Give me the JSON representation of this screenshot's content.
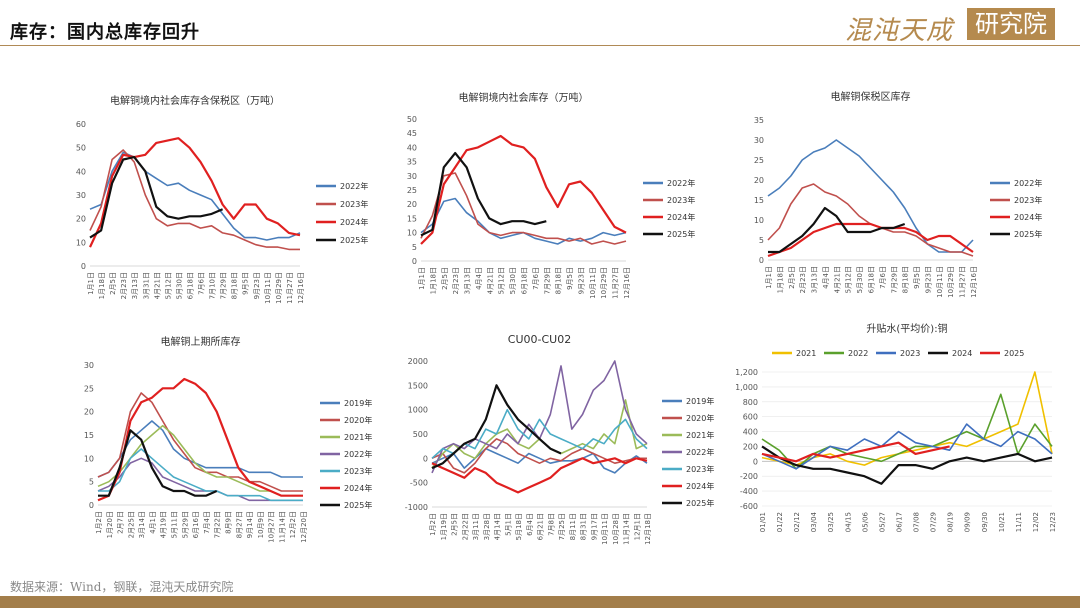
{
  "header": {
    "title": "库存：国内总库存回升",
    "logo_text": "混沌天成",
    "logo_box": "研究院"
  },
  "footer": {
    "source": "数据来源：Wind，钢联，混沌天成研究院"
  },
  "colors": {
    "accent": "#b58a4e"
  },
  "chart_data": [
    {
      "id": "c1",
      "type": "line",
      "title": "电解铜境内社会库存含保税区（万吨）",
      "ylim": [
        0,
        60
      ],
      "yticks": [
        0,
        10,
        20,
        30,
        40,
        50,
        60
      ],
      "categories": [
        "1月1日",
        "1月18日",
        "2月5日",
        "2月23日",
        "3月13日",
        "3月31日",
        "4月21日",
        "5月12日",
        "5月30日",
        "6月18日",
        "7月6日",
        "7月10日",
        "7月29日",
        "8月18日",
        "9月5日",
        "9月23日",
        "10月11日",
        "10月29日",
        "11月27日",
        "12月16日"
      ],
      "legend_position": "right",
      "series": [
        {
          "name": "2022年",
          "color": "#4a7ebb",
          "values": [
            24,
            26,
            40,
            48,
            46,
            40,
            37,
            34,
            35,
            32,
            30,
            28,
            22,
            16,
            12,
            12,
            11,
            12,
            12,
            14
          ]
        },
        {
          "name": "2023年",
          "color": "#c0504d",
          "values": [
            15,
            25,
            45,
            49,
            44,
            30,
            20,
            17,
            18,
            18,
            16,
            17,
            14,
            13,
            11,
            9,
            8,
            8,
            7,
            7
          ]
        },
        {
          "name": "2024年",
          "color": "#e02020",
          "values": [
            8,
            18,
            38,
            47,
            46,
            47,
            52,
            53,
            54,
            50,
            44,
            36,
            26,
            20,
            26,
            26,
            20,
            18,
            14,
            13
          ]
        },
        {
          "name": "2025年",
          "color": "#111111",
          "values": [
            12,
            15,
            35,
            45,
            46,
            40,
            25,
            21,
            20,
            21,
            21,
            22,
            24,
            null,
            null,
            null,
            null,
            null,
            null,
            null
          ]
        }
      ]
    },
    {
      "id": "c2",
      "type": "line",
      "title": "电解铜境内社会库存（万吨）",
      "ylim": [
        0,
        50
      ],
      "yticks": [
        0,
        5,
        10,
        15,
        20,
        25,
        30,
        35,
        40,
        45,
        50
      ],
      "categories": [
        "1月1日",
        "1月18日",
        "2月5日",
        "2月23日",
        "3月13日",
        "4月4日",
        "4月21日",
        "5月12日",
        "5月30日",
        "6月18日",
        "7月6日",
        "7月29日",
        "8月18日",
        "9月5日",
        "9月23日",
        "10月11日",
        "10月29日",
        "11月27日",
        "12月16日"
      ],
      "legend_position": "right",
      "series": [
        {
          "name": "2022年",
          "color": "#4a7ebb",
          "values": [
            10,
            13,
            21,
            22,
            17,
            14,
            10,
            8,
            9,
            10,
            8,
            7,
            6,
            8,
            7,
            8,
            10,
            9,
            10
          ]
        },
        {
          "name": "2023年",
          "color": "#c0504d",
          "values": [
            8,
            16,
            30,
            31,
            23,
            13,
            10,
            9,
            10,
            10,
            9,
            8,
            8,
            7,
            8,
            6,
            7,
            6,
            7
          ]
        },
        {
          "name": "2024年",
          "color": "#e02020",
          "values": [
            6,
            10,
            27,
            33,
            39,
            40,
            42,
            44,
            41,
            40,
            36,
            26,
            19,
            27,
            28,
            24,
            18,
            12,
            10
          ]
        },
        {
          "name": "2025年",
          "color": "#111111",
          "values": [
            9,
            11,
            33,
            38,
            33,
            22,
            15,
            13,
            14,
            14,
            13,
            14,
            null,
            null,
            null,
            null,
            null,
            null,
            null
          ]
        }
      ]
    },
    {
      "id": "c3",
      "type": "line",
      "title": "电解铜保税区库存",
      "ylim": [
        0,
        35
      ],
      "yticks": [
        0,
        5,
        10,
        15,
        20,
        25,
        30,
        35
      ],
      "categories": [
        "1月1日",
        "1月18日",
        "2月5日",
        "2月23日",
        "3月13日",
        "4月4日",
        "4月21日",
        "5月12日",
        "5月30日",
        "6月18日",
        "7月6日",
        "7月29日",
        "8月18日",
        "9月5日",
        "9月23日",
        "10月11日",
        "10月29日",
        "11月27日",
        "12月16日"
      ],
      "legend_position": "right",
      "series": [
        {
          "name": "2022年",
          "color": "#4a7ebb",
          "values": [
            16,
            18,
            21,
            25,
            27,
            28,
            30,
            28,
            26,
            23,
            20,
            17,
            13,
            8,
            4,
            2,
            2,
            2,
            5
          ]
        },
        {
          "name": "2023年",
          "color": "#c0504d",
          "values": [
            5,
            8,
            14,
            18,
            19,
            17,
            16,
            14,
            11,
            9,
            8,
            7,
            7,
            6,
            4,
            3,
            2,
            2,
            1
          ]
        },
        {
          "name": "2024年",
          "color": "#e02020",
          "values": [
            1,
            2,
            3,
            5,
            7,
            8,
            9,
            9,
            9,
            9,
            8,
            8,
            8,
            7,
            5,
            6,
            6,
            4,
            2
          ]
        },
        {
          "name": "2025年",
          "color": "#111111",
          "values": [
            2,
            2,
            4,
            6,
            9,
            13,
            11,
            7,
            7,
            7,
            8,
            8,
            9,
            null,
            null,
            null,
            null,
            null,
            null
          ]
        }
      ]
    },
    {
      "id": "c4",
      "type": "line",
      "title": "电解铜上期所库存",
      "ylim": [
        0,
        30
      ],
      "yticks": [
        0,
        5,
        10,
        15,
        20,
        25,
        30
      ],
      "categories": [
        "1月2日",
        "1月20日",
        "2月7日",
        "2月25日",
        "3月14日",
        "4月1日",
        "4月19日",
        "5月11日",
        "5月29日",
        "6月16日",
        "7月4日",
        "7月22日",
        "8月9日",
        "8月27日",
        "9月14日",
        "10月9日",
        "10月27日",
        "11月14日",
        "12月2日",
        "12月20日"
      ],
      "legend_position": "right",
      "series": [
        {
          "name": "2019年",
          "color": "#4a7ebb",
          "values": [
            6,
            7,
            10,
            14,
            16,
            18,
            16,
            12,
            10,
            9,
            8,
            8,
            8,
            8,
            7,
            7,
            7,
            6,
            6,
            6
          ]
        },
        {
          "name": "2020年",
          "color": "#c0504d",
          "values": [
            6,
            7,
            10,
            20,
            24,
            22,
            18,
            14,
            11,
            8,
            7,
            7,
            6,
            6,
            5,
            5,
            4,
            3,
            3,
            3
          ]
        },
        {
          "name": "2021年",
          "color": "#9bbb59",
          "values": [
            4,
            5,
            7,
            10,
            13,
            15,
            17,
            15,
            12,
            9,
            7,
            6,
            6,
            5,
            4,
            3,
            3,
            2,
            2,
            2
          ]
        },
        {
          "name": "2022年",
          "color": "#8064a2",
          "values": [
            3,
            4,
            6,
            9,
            10,
            9,
            6,
            5,
            4,
            3,
            3,
            3,
            2,
            2,
            1,
            1,
            1,
            1,
            1,
            1
          ]
        },
        {
          "name": "2023年",
          "color": "#4bacc6",
          "values": [
            3,
            3,
            5,
            10,
            12,
            10,
            8,
            6,
            5,
            4,
            3,
            3,
            2,
            2,
            2,
            2,
            1,
            1,
            1,
            1
          ]
        },
        {
          "name": "2024年",
          "color": "#e02020",
          "values": [
            1,
            2,
            7,
            18,
            22,
            23,
            25,
            25,
            27,
            26,
            24,
            20,
            14,
            8,
            5,
            4,
            3,
            2,
            2,
            2
          ]
        },
        {
          "name": "2025年",
          "color": "#111111",
          "values": [
            2,
            2,
            8,
            16,
            14,
            8,
            4,
            3,
            3,
            2,
            2,
            3,
            null,
            null,
            null,
            null,
            null,
            null,
            null,
            null
          ]
        }
      ]
    },
    {
      "id": "c5",
      "type": "line",
      "title": "CU00-CU02",
      "ylim": [
        -1000,
        2000
      ],
      "yticks": [
        -1000,
        -500,
        0,
        500,
        1000,
        1500,
        2000
      ],
      "categories": [
        "1月2日",
        "1月19日",
        "2月5日",
        "2月22日",
        "3月11日",
        "3月28日",
        "4月14日",
        "5月1日",
        "5月18日",
        "6月4日",
        "6月21日",
        "7月8日",
        "7月25日",
        "8月11日",
        "8月31日",
        "9月17日",
        "10月11日",
        "10月28日",
        "11月14日",
        "12月1日",
        "12月18日"
      ],
      "legend_position": "right",
      "series": [
        {
          "name": "2019年",
          "color": "#4a7ebb",
          "values": [
            -100,
            0,
            100,
            -200,
            0,
            200,
            100,
            0,
            -100,
            100,
            0,
            -100,
            -50,
            -50,
            0,
            100,
            -200,
            -300,
            -100,
            50,
            -100
          ]
        },
        {
          "name": "2020年",
          "color": "#c0504d",
          "values": [
            0,
            100,
            -200,
            -300,
            -100,
            200,
            400,
            300,
            100,
            0,
            -100,
            0,
            -50,
            100,
            200,
            100,
            0,
            -100,
            -50,
            0,
            0
          ]
        },
        {
          "name": "2021年",
          "color": "#9bbb59",
          "values": [
            -200,
            100,
            300,
            100,
            0,
            300,
            500,
            600,
            300,
            200,
            400,
            200,
            100,
            200,
            300,
            200,
            500,
            300,
            1200,
            200,
            300
          ]
        },
        {
          "name": "2022年",
          "color": "#8064a2",
          "values": [
            -300,
            200,
            300,
            200,
            400,
            300,
            200,
            500,
            300,
            700,
            400,
            900,
            1900,
            600,
            900,
            1400,
            1600,
            2000,
            1000,
            500,
            300
          ]
        },
        {
          "name": "2023年",
          "color": "#4bacc6",
          "values": [
            0,
            200,
            100,
            300,
            200,
            600,
            500,
            1000,
            600,
            400,
            800,
            500,
            400,
            300,
            200,
            400,
            300,
            600,
            800,
            400,
            200
          ]
        },
        {
          "name": "2024年",
          "color": "#e02020",
          "values": [
            -100,
            -200,
            -300,
            -400,
            -200,
            -300,
            -500,
            -600,
            -700,
            -600,
            -500,
            -400,
            -200,
            -100,
            0,
            -100,
            -50,
            0,
            -100,
            0,
            -50
          ]
        },
        {
          "name": "2025年",
          "color": "#111111",
          "values": [
            -200,
            -100,
            100,
            300,
            400,
            800,
            1500,
            1100,
            800,
            600,
            400,
            200,
            100,
            null,
            null,
            null,
            null,
            null,
            null,
            null,
            null
          ]
        }
      ]
    },
    {
      "id": "c6",
      "type": "line",
      "title": "升贴水(平均价):铜",
      "ylim": [
        -600,
        1200
      ],
      "yticks": [
        -600,
        -400,
        -200,
        0,
        200,
        400,
        600,
        800,
        1000,
        1200
      ],
      "ytick_labels": [
        "-600",
        "-400",
        "-200",
        "0",
        "200",
        "400",
        "600",
        "800",
        "1,000",
        "1,200"
      ],
      "categories": [
        "01/01",
        "01/22",
        "02/12",
        "03/04",
        "03/25",
        "04/15",
        "05/06",
        "05/27",
        "06/17",
        "07/08",
        "07/29",
        "08/19",
        "09/09",
        "09/30",
        "10/21",
        "11/11",
        "12/02",
        "12/23"
      ],
      "legend_position": "top",
      "series": [
        {
          "name": "2021",
          "color": "#f0c000",
          "values": [
            50,
            0,
            -50,
            50,
            100,
            0,
            -50,
            50,
            100,
            150,
            200,
            250,
            200,
            300,
            400,
            500,
            1200,
            100
          ]
        },
        {
          "name": "2022",
          "color": "#5aa02c",
          "values": [
            300,
            150,
            -100,
            100,
            200,
            100,
            50,
            0,
            100,
            200,
            200,
            300,
            400,
            300,
            900,
            100,
            500,
            200
          ]
        },
        {
          "name": "2023",
          "color": "#3f6fbf",
          "values": [
            100,
            0,
            -100,
            50,
            200,
            150,
            300,
            200,
            400,
            250,
            200,
            150,
            500,
            300,
            200,
            400,
            300,
            100
          ]
        },
        {
          "name": "2024",
          "color": "#111111",
          "values": [
            200,
            50,
            -50,
            -100,
            -100,
            -150,
            -200,
            -300,
            -50,
            -50,
            -100,
            0,
            50,
            0,
            50,
            100,
            0,
            50
          ]
        },
        {
          "name": "2025",
          "color": "#e02020",
          "values": [
            100,
            50,
            0,
            100,
            50,
            100,
            150,
            200,
            250,
            100,
            150,
            200,
            null,
            null,
            null,
            null,
            null,
            null
          ]
        }
      ]
    }
  ]
}
